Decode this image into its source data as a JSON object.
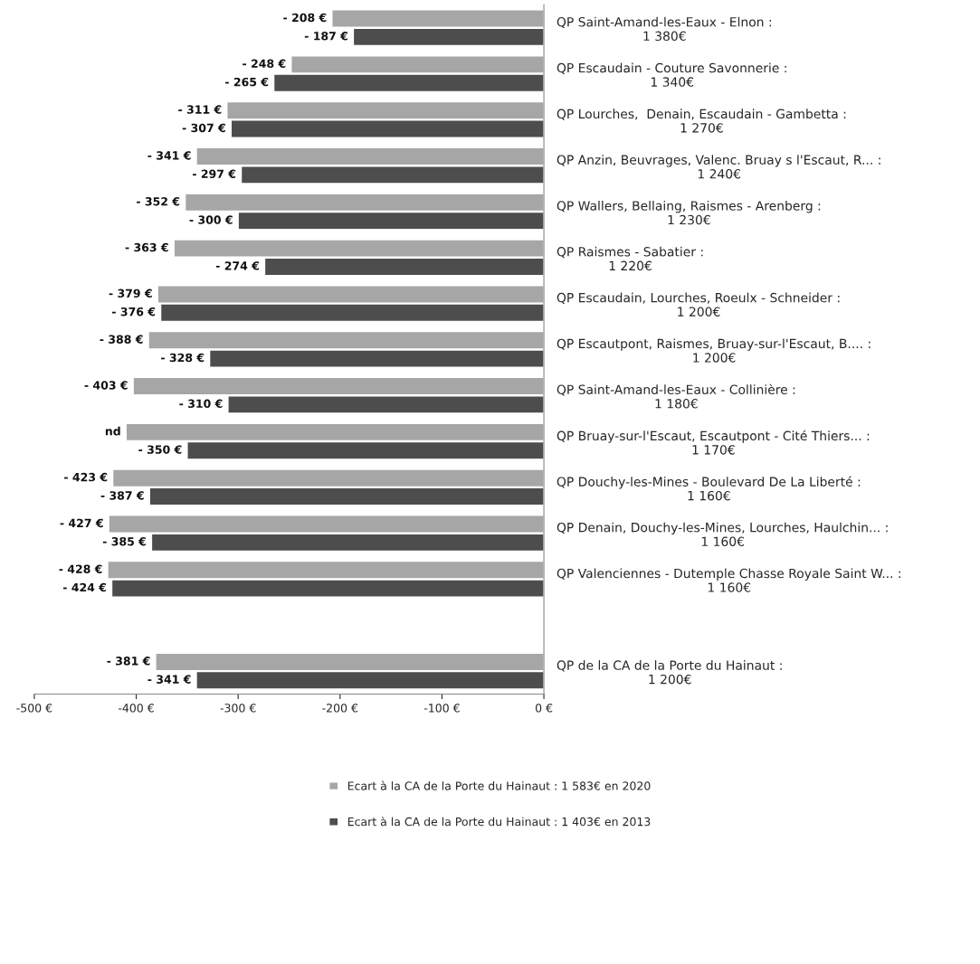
{
  "chart_data": {
    "type": "bar",
    "orientation": "horizontal",
    "categories": [
      "QP Saint-Amand-les-Eaux - Elnon :\n1 380€",
      "QP Escaudain - Couture Savonnerie :\n1 340€",
      "QP Lourches,  Denain, Escaudain - Gambetta :\n1 270€",
      "QP Anzin, Beuvrages, Valenc. Bruay s l'Escaut, R... :\n1 240€",
      "QP Wallers, Bellaing, Raismes - Arenberg :\n1 230€",
      "QP Raismes - Sabatier :\n1 220€",
      "QP Escaudain, Lourches, Roeulx - Schneider :\n1 200€",
      "QP Escautpont, Raismes, Bruay-sur-l'Escaut, B.... :\n1 200€",
      "QP Saint-Amand-les-Eaux - Collinière :\n1 180€",
      "QP Bruay-sur-l'Escaut, Escautpont - Cité Thiers... :\n1 170€",
      "QP Douchy-les-Mines - Boulevard De La Liberté :\n1 160€",
      "QP Denain, Douchy-les-Mines, Lourches, Haulchin... :\n1 160€",
      "QP Valenciennes - Dutemple Chasse Royale Saint W... :\n1 160€",
      null,
      "QP de la CA de la Porte du Hainaut :\n1 200€"
    ],
    "series": [
      {
        "name": "Ecart à la CA de la Porte du Hainaut : 1 583€ en 2020",
        "color": "#a6a6a6",
        "values": [
          -208,
          -248,
          -311,
          -341,
          -352,
          -363,
          -379,
          -388,
          -403,
          -410,
          -423,
          -427,
          -428,
          null,
          -381
        ],
        "value_labels": [
          "- 208 €",
          "- 248 €",
          "- 311 €",
          "- 341 €",
          "- 352 €",
          "- 363 €",
          "- 379 €",
          "- 388 €",
          "- 403 €",
          "nd",
          "- 423 €",
          "- 427 €",
          "- 428 €",
          null,
          "- 381 €"
        ]
      },
      {
        "name": "Ecart à la CA de la Porte du Hainaut : 1 403€ en 2013",
        "color": "#4d4d4d",
        "values": [
          -187,
          -265,
          -307,
          -297,
          -300,
          -274,
          -376,
          -328,
          -310,
          -350,
          -387,
          -385,
          -424,
          null,
          -341
        ],
        "value_labels": [
          "- 187 €",
          "- 265 €",
          "- 307 €",
          "- 297 €",
          "- 300 €",
          "- 274 €",
          "- 376 €",
          "- 328 €",
          "- 310 €",
          "- 350 €",
          "- 387 €",
          "- 385 €",
          "- 424 €",
          null,
          "- 341 €"
        ]
      }
    ],
    "xlim": [
      -500,
      0
    ],
    "xticks": [
      {
        "value": -500,
        "label": "-500 €"
      },
      {
        "value": -400,
        "label": "-400 €"
      },
      {
        "value": -300,
        "label": "-300 €"
      },
      {
        "value": -200,
        "label": "-200 €"
      },
      {
        "value": -100,
        "label": "-100 €"
      },
      {
        "value": 0,
        "label": "0 €"
      }
    ],
    "grid": false,
    "legend": "bottom"
  }
}
